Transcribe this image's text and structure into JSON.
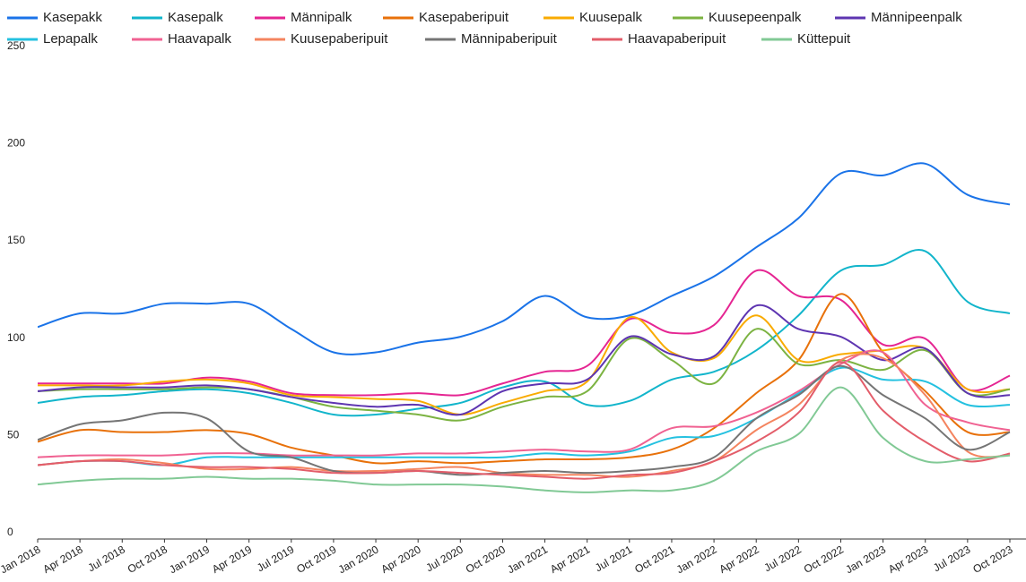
{
  "chart_data": {
    "type": "line",
    "categories": [
      "Jan 2018",
      "Apr 2018",
      "Jul 2018",
      "Oct 2018",
      "Jan 2019",
      "Apr 2019",
      "Jul 2019",
      "Oct 2019",
      "Jan 2020",
      "Apr 2020",
      "Jul 2020",
      "Oct 2020",
      "Jan 2021",
      "Apr 2021",
      "Jul 2021",
      "Oct 2021",
      "Jan 2022",
      "Apr 2022",
      "Jul 2022",
      "Oct 2022",
      "Jan 2023",
      "Apr 2023",
      "Jul 2023",
      "Oct 2023"
    ],
    "ylim": [
      0,
      250
    ],
    "yticks": [
      0,
      50,
      100,
      150,
      200,
      250
    ],
    "grid": false,
    "series": [
      {
        "name": "Kasepakk",
        "color": "#1a73e8",
        "values": [
          109,
          116,
          116,
          121,
          121,
          121,
          108,
          96,
          96,
          101,
          104,
          112,
          125,
          114,
          115,
          125,
          135,
          150,
          165,
          188,
          187,
          193,
          177,
          172
        ]
      },
      {
        "name": "Kasepalk",
        "color": "#12b5cb",
        "values": [
          70,
          73,
          74,
          76,
          77,
          75,
          70,
          64,
          64,
          67,
          70,
          78,
          81,
          69,
          71,
          82,
          86,
          97,
          115,
          138,
          141,
          148,
          122,
          116
        ]
      },
      {
        "name": "Männipalk",
        "color": "#e52592",
        "values": [
          80,
          80,
          80,
          80,
          83,
          81,
          75,
          74,
          74,
          75,
          74,
          80,
          86,
          89,
          113,
          106,
          110,
          138,
          125,
          123,
          100,
          103,
          77,
          84
        ]
      },
      {
        "name": "Kasepaberipuit",
        "color": "#e8710a",
        "values": [
          50,
          56,
          55,
          55,
          56,
          54,
          47,
          43,
          39,
          40,
          39,
          40,
          41,
          41,
          42,
          46,
          57,
          75,
          92,
          126,
          96,
          76,
          55,
          55
        ]
      },
      {
        "name": "Kuusepalk",
        "color": "#f9ab00",
        "values": [
          79,
          79,
          79,
          81,
          82,
          80,
          74,
          73,
          72,
          71,
          64,
          70,
          76,
          81,
          114,
          96,
          93,
          115,
          92,
          95,
          97,
          98,
          77,
          77
        ]
      },
      {
        "name": "Kuusepeenpalk",
        "color": "#7cb342",
        "values": [
          76,
          77,
          77,
          77,
          78,
          77,
          73,
          68,
          66,
          64,
          61,
          68,
          73,
          76,
          103,
          92,
          80,
          108,
          90,
          92,
          87,
          97,
          75,
          77
        ]
      },
      {
        "name": "Männipeenpalk",
        "color": "#5e35b1",
        "values": [
          76,
          78,
          78,
          78,
          79,
          77,
          73,
          70,
          68,
          69,
          64,
          76,
          80,
          82,
          104,
          95,
          94,
          120,
          108,
          104,
          92,
          98,
          75,
          74
        ]
      },
      {
        "name": "Lepapalk",
        "color": "#24c1e0",
        "values": [
          38,
          40,
          40,
          38,
          42,
          42,
          42,
          42,
          42,
          42,
          42,
          42,
          44,
          43,
          45,
          52,
          53,
          62,
          75,
          88,
          82,
          81,
          69,
          69
        ]
      },
      {
        "name": "Haavapalk",
        "color": "#f06292",
        "values": [
          42,
          43,
          43,
          43,
          44,
          44,
          43,
          43,
          43,
          44,
          44,
          45,
          46,
          45,
          46,
          57,
          58,
          65,
          76,
          90,
          96,
          69,
          60,
          56
        ]
      },
      {
        "name": "Kuusepaberipuit",
        "color": "#f4845f",
        "values": [
          38,
          40,
          41,
          39,
          36,
          36,
          37,
          35,
          35,
          36,
          37,
          34,
          33,
          33,
          32,
          35,
          40,
          56,
          69,
          92,
          93,
          74,
          45,
          43
        ]
      },
      {
        "name": "Männipaberipuit",
        "color": "#757575",
        "values": [
          51,
          59,
          61,
          65,
          62,
          45,
          42,
          35,
          34,
          35,
          33,
          34,
          35,
          34,
          35,
          37,
          42,
          62,
          74,
          89,
          74,
          62,
          46,
          55
        ]
      },
      {
        "name": "Haavapaberipuit",
        "color": "#e35d6a",
        "values": [
          38,
          40,
          40,
          38,
          37,
          37,
          36,
          34,
          34,
          35,
          34,
          33,
          32,
          31,
          33,
          34,
          40,
          50,
          65,
          91,
          66,
          50,
          40,
          44
        ]
      },
      {
        "name": "Küttepuit",
        "color": "#81c995",
        "values": [
          28,
          30,
          31,
          31,
          32,
          31,
          31,
          30,
          28,
          28,
          28,
          27,
          25,
          24,
          25,
          25,
          30,
          45,
          54,
          78,
          52,
          40,
          41,
          43
        ]
      }
    ]
  }
}
